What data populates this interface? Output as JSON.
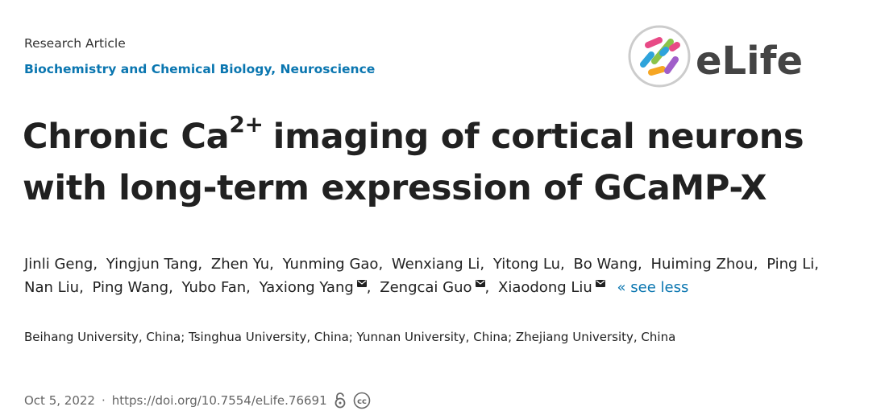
{
  "header": {
    "article_type": "Research Article",
    "subjects": "Biochemistry and Chemical Biology, Neuroscience",
    "logo": "eLife"
  },
  "title": {
    "before": "Chronic Ca",
    "sup": "2+",
    "after": "imaging of cortical neurons with long-term expression of GCaMP-X"
  },
  "authors": [
    {
      "name": "Jinli Geng",
      "punct": ",",
      "email": false
    },
    {
      "name": "Yingjun Tang",
      "punct": ",",
      "email": false
    },
    {
      "name": "Zhen Yu",
      "punct": ",",
      "email": false
    },
    {
      "name": "Yunming Gao",
      "punct": ",",
      "email": false
    },
    {
      "name": "Wenxiang Li",
      "punct": ",",
      "email": false
    },
    {
      "name": "Yitong Lu",
      "punct": ",",
      "email": false
    },
    {
      "name": "Bo Wang",
      "punct": ",",
      "email": false
    },
    {
      "name": "Huiming Zhou",
      "punct": ",",
      "email": false
    },
    {
      "name": "Ping Li",
      "punct": ",",
      "email": false
    },
    {
      "name": "Nan Liu",
      "punct": ",",
      "email": false
    },
    {
      "name": "Ping Wang",
      "punct": ",",
      "email": false
    },
    {
      "name": "Yubo Fan",
      "punct": ",",
      "email": false
    },
    {
      "name": "Yaxiong Yang",
      "punct": ",",
      "email": true
    },
    {
      "name": "Zengcai Guo",
      "punct": ",",
      "email": true
    },
    {
      "name": "Xiaodong Liu",
      "punct": "",
      "email": true
    }
  ],
  "toggle": "« see less",
  "affiliations": "Beihang University, China; Tsinghua University, China; Yunnan University, China; Zhejiang University, China",
  "meta": {
    "date": "Oct 5, 2022",
    "separator": "·",
    "doi": "https://doi.org/10.7554/eLife.76691",
    "license": "cc"
  }
}
